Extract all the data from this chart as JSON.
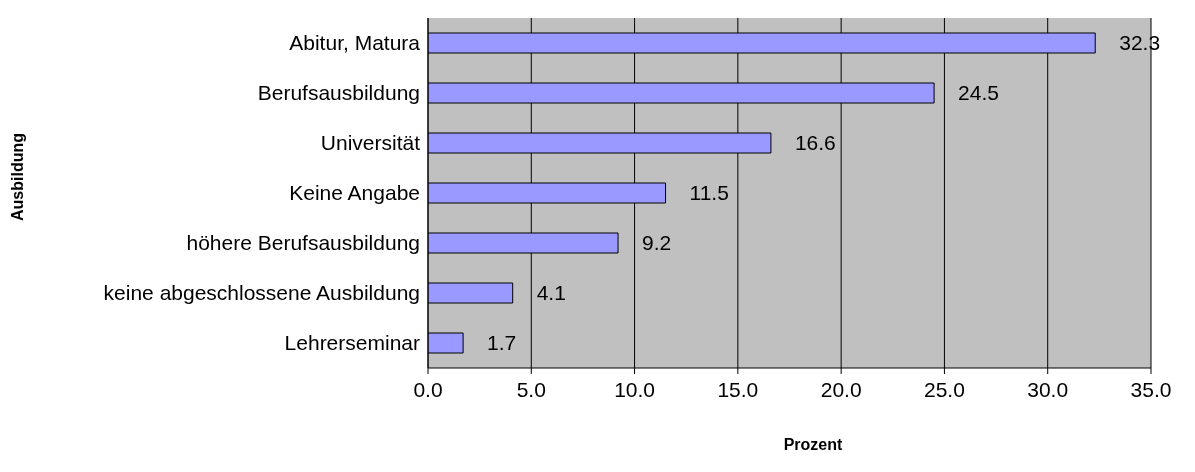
{
  "chart_data": {
    "type": "bar",
    "orientation": "horizontal",
    "xlabel": "Prozent",
    "ylabel": "Ausbildung",
    "categories": [
      "Abitur, Matura",
      "Berufsausbildung",
      "Universität",
      "Keine Angabe",
      "höhere Berufsausbildung",
      "keine abgeschlossene Ausbildung",
      "Lehrerseminar"
    ],
    "values": [
      32.3,
      24.5,
      16.6,
      11.5,
      9.2,
      4.1,
      1.7
    ],
    "color": "#9999ff",
    "xlim": [
      0,
      35
    ],
    "xticks": [
      {
        "value": 0,
        "label": "0.0"
      },
      {
        "value": 5,
        "label": "5.0"
      },
      {
        "value": 10,
        "label": "10.0"
      },
      {
        "value": 15,
        "label": "15.0"
      },
      {
        "value": 20,
        "label": "20.0"
      },
      {
        "value": 25,
        "label": "25.0"
      },
      {
        "value": 30,
        "label": "30.0"
      },
      {
        "value": 35,
        "label": "35.0"
      }
    ],
    "grid": "x",
    "data_labels": true,
    "legend": false
  }
}
